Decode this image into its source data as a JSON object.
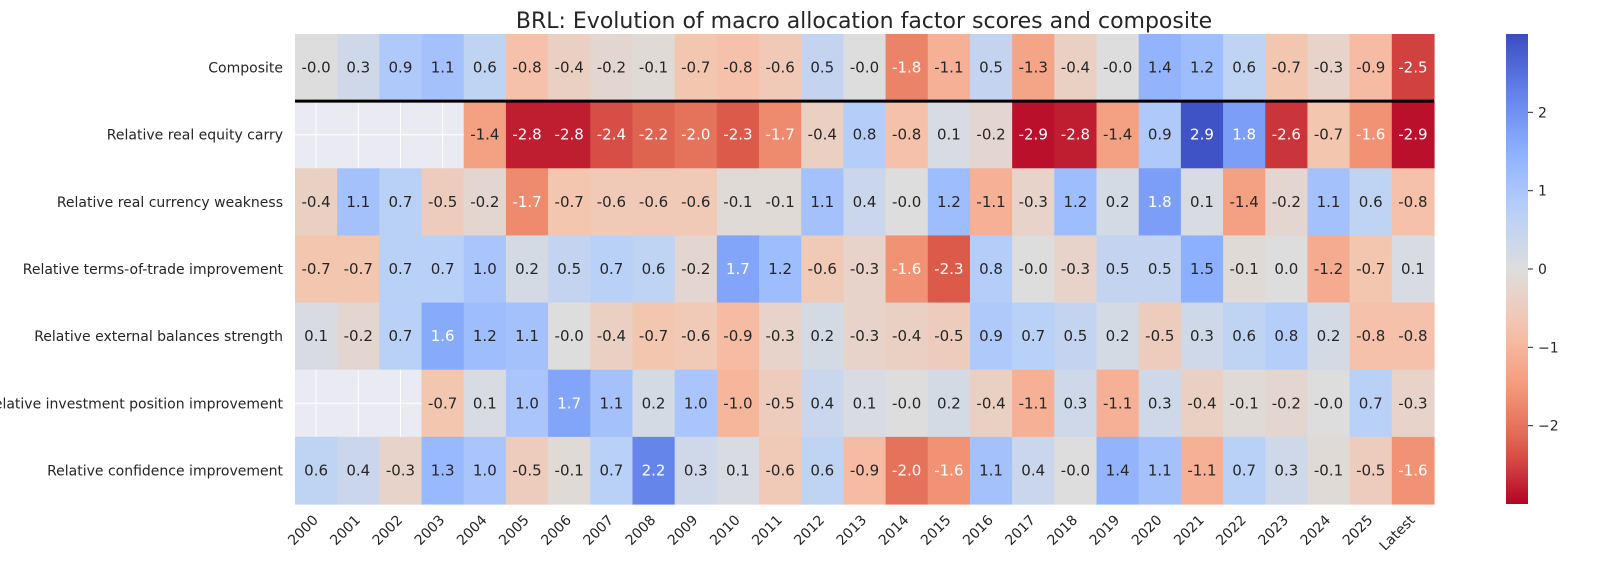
{
  "chart_data": {
    "type": "heatmap",
    "title": "BRL: Evolution of macro allocation factor scores and composite",
    "xlabel": "",
    "ylabel": "",
    "columns": [
      "2000",
      "2001",
      "2002",
      "2003",
      "2004",
      "2005",
      "2006",
      "2007",
      "2008",
      "2009",
      "2010",
      "2011",
      "2012",
      "2013",
      "2014",
      "2015",
      "2016",
      "2017",
      "2018",
      "2019",
      "2020",
      "2021",
      "2022",
      "2023",
      "2024",
      "2025",
      "Latest"
    ],
    "rows": [
      "Composite",
      "Relative real equity carry",
      "Relative real currency weakness",
      "Relative terms-of-trade improvement",
      "Relative external balances strength",
      "Relative investment position improvement",
      "Relative confidence improvement"
    ],
    "values": [
      [
        -0.0,
        0.3,
        0.9,
        1.1,
        0.6,
        -0.8,
        -0.4,
        -0.2,
        -0.1,
        -0.7,
        -0.8,
        -0.6,
        0.5,
        -0.0,
        -1.8,
        -1.1,
        0.5,
        -1.3,
        -0.4,
        -0.0,
        1.4,
        1.2,
        0.6,
        -0.7,
        -0.3,
        -0.9,
        -2.5
      ],
      [
        null,
        null,
        null,
        null,
        -1.4,
        -2.8,
        -2.8,
        -2.4,
        -2.2,
        -2.0,
        -2.3,
        -1.7,
        -0.4,
        0.8,
        -0.8,
        0.1,
        -0.2,
        -2.9,
        -2.8,
        -1.4,
        0.9,
        2.9,
        1.8,
        -2.6,
        -0.7,
        -1.6,
        -2.9
      ],
      [
        -0.4,
        1.1,
        0.7,
        -0.5,
        -0.2,
        -1.7,
        -0.7,
        -0.6,
        -0.6,
        -0.6,
        -0.1,
        -0.1,
        1.1,
        0.4,
        -0.0,
        1.2,
        -1.1,
        -0.3,
        1.2,
        0.2,
        1.8,
        0.1,
        -1.4,
        -0.2,
        1.1,
        0.6,
        -0.8
      ],
      [
        -0.7,
        -0.7,
        0.7,
        0.7,
        1.0,
        0.2,
        0.5,
        0.7,
        0.6,
        -0.2,
        1.7,
        1.2,
        -0.6,
        -0.3,
        -1.6,
        -2.3,
        0.8,
        -0.0,
        -0.3,
        0.5,
        0.5,
        1.5,
        -0.1,
        0.0,
        -1.2,
        -0.7,
        0.1
      ],
      [
        0.1,
        -0.2,
        0.7,
        1.6,
        1.2,
        1.1,
        -0.0,
        -0.4,
        -0.7,
        -0.6,
        -0.9,
        -0.3,
        0.2,
        -0.3,
        -0.4,
        -0.5,
        0.9,
        0.7,
        0.5,
        0.2,
        -0.5,
        0.3,
        0.6,
        0.8,
        0.2,
        -0.8,
        -0.8
      ],
      [
        null,
        null,
        null,
        -0.7,
        0.1,
        1.0,
        1.7,
        1.1,
        0.2,
        1.0,
        -1.0,
        -0.5,
        0.4,
        0.1,
        -0.0,
        0.2,
        -0.4,
        -1.1,
        0.3,
        -1.1,
        0.3,
        -0.4,
        -0.1,
        -0.2,
        -0.0,
        0.7,
        -0.3
      ],
      [
        0.6,
        0.4,
        -0.3,
        1.3,
        1.0,
        -0.5,
        -0.1,
        0.7,
        2.2,
        0.3,
        0.1,
        -0.6,
        0.6,
        -0.9,
        -2.0,
        -1.6,
        1.1,
        0.4,
        -0.0,
        1.4,
        1.1,
        -1.1,
        0.7,
        0.3,
        -0.1,
        -0.5,
        -1.6
      ]
    ],
    "value_labels": [
      [
        "-0.0",
        "0.3",
        "0.9",
        "1.1",
        "0.6",
        "-0.8",
        "-0.4",
        "-0.2",
        "-0.1",
        "-0.7",
        "-0.8",
        "-0.6",
        "0.5",
        "-0.0",
        "-1.8",
        "-1.1",
        "0.5",
        "-1.3",
        "-0.4",
        "-0.0",
        "1.4",
        "1.2",
        "0.6",
        "-0.7",
        "-0.3",
        "-0.9",
        "-2.5"
      ],
      [
        "",
        "",
        "",
        "",
        "-1.4",
        "-2.8",
        "-2.8",
        "-2.4",
        "-2.2",
        "-2.0",
        "-2.3",
        "-1.7",
        "-0.4",
        "0.8",
        "-0.8",
        "0.1",
        "-0.2",
        "-2.9",
        "-2.8",
        "-1.4",
        "0.9",
        "2.9",
        "1.8",
        "-2.6",
        "-0.7",
        "-1.6",
        "-2.9"
      ],
      [
        "-0.4",
        "1.1",
        "0.7",
        "-0.5",
        "-0.2",
        "-1.7",
        "-0.7",
        "-0.6",
        "-0.6",
        "-0.6",
        "-0.1",
        "-0.1",
        "1.1",
        "0.4",
        "-0.0",
        "1.2",
        "-1.1",
        "-0.3",
        "1.2",
        "0.2",
        "1.8",
        "0.1",
        "-1.4",
        "-0.2",
        "1.1",
        "0.6",
        "-0.8"
      ],
      [
        "-0.7",
        "-0.7",
        "0.7",
        "0.7",
        "1.0",
        "0.2",
        "0.5",
        "0.7",
        "0.6",
        "-0.2",
        "1.7",
        "1.2",
        "-0.6",
        "-0.3",
        "-1.6",
        "-2.3",
        "0.8",
        "-0.0",
        "-0.3",
        "0.5",
        "0.5",
        "1.5",
        "-0.1",
        "0.0",
        "-1.2",
        "-0.7",
        "0.1"
      ],
      [
        "0.1",
        "-0.2",
        "0.7",
        "1.6",
        "1.2",
        "1.1",
        "-0.0",
        "-0.4",
        "-0.7",
        "-0.6",
        "-0.9",
        "-0.3",
        "0.2",
        "-0.3",
        "-0.4",
        "-0.5",
        "0.9",
        "0.7",
        "0.5",
        "0.2",
        "-0.5",
        "0.3",
        "0.6",
        "0.8",
        "0.2",
        "-0.8",
        "-0.8"
      ],
      [
        "",
        "",
        "",
        "-0.7",
        "0.1",
        "1.0",
        "1.7",
        "1.1",
        "0.2",
        "1.0",
        "-1.0",
        "-0.5",
        "0.4",
        "0.1",
        "-0.0",
        "0.2",
        "-0.4",
        "-1.1",
        "0.3",
        "-1.1",
        "0.3",
        "-0.4",
        "-0.1",
        "-0.2",
        "-0.0",
        "0.7",
        "-0.3"
      ],
      [
        "0.6",
        "0.4",
        "-0.3",
        "1.3",
        "1.0",
        "-0.5",
        "-0.1",
        "0.7",
        "2.2",
        "0.3",
        "0.1",
        "-0.6",
        "0.6",
        "-0.9",
        "-2.0",
        "-1.6",
        "1.1",
        "0.4",
        "-0.0",
        "1.4",
        "1.1",
        "-1.1",
        "0.7",
        "0.3",
        "-0.1",
        "-0.5",
        "-1.6"
      ]
    ],
    "colormap": "coolwarm_r",
    "vmin": -3,
    "vmax": 3,
    "missing_color": "#eaeaf2",
    "separator_after_row": 0,
    "colorbar": {
      "ticks": [
        2,
        1,
        0,
        -1,
        -2
      ],
      "tick_labels": [
        "2",
        "1",
        "0",
        "−1",
        "−2"
      ]
    }
  }
}
